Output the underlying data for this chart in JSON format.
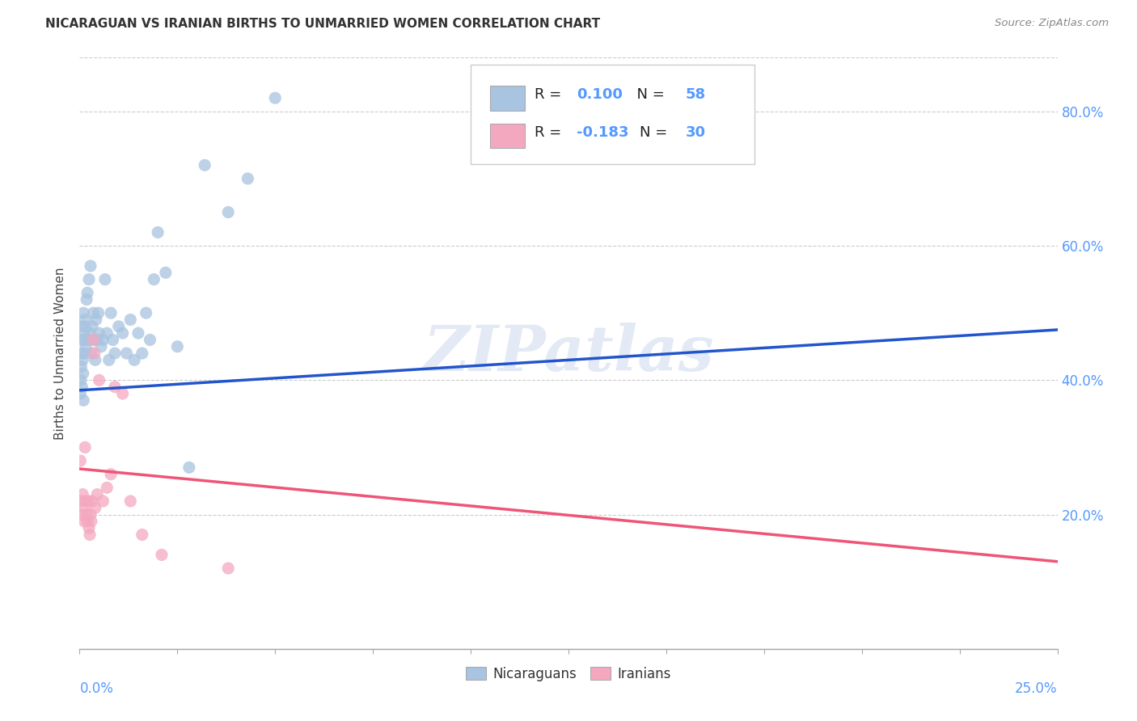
{
  "title": "NICARAGUAN VS IRANIAN BIRTHS TO UNMARRIED WOMEN CORRELATION CHART",
  "source": "Source: ZipAtlas.com",
  "ylabel": "Births to Unmarried Women",
  "legend_label_blue": "Nicaraguans",
  "legend_label_pink": "Iranians",
  "blue_color": "#a8c4e0",
  "pink_color": "#f4a8c0",
  "blue_line_color": "#2255cc",
  "pink_line_color": "#ee5577",
  "text_color": "#5599ff",
  "watermark": "ZIPatlas",
  "blue_scatter_x": [
    0.0002,
    0.0003,
    0.0004,
    0.0005,
    0.0006,
    0.0007,
    0.0008,
    0.0009,
    0.001,
    0.0011,
    0.0012,
    0.0013,
    0.0014,
    0.0015,
    0.0016,
    0.0018,
    0.002,
    0.0022,
    0.0024,
    0.0026,
    0.0028,
    0.003,
    0.0032,
    0.0035,
    0.0038,
    0.004,
    0.0042,
    0.0045,
    0.0048,
    0.005,
    0.0055,
    0.006,
    0.0065,
    0.007,
    0.0075,
    0.008,
    0.0085,
    0.009,
    0.01,
    0.011,
    0.012,
    0.013,
    0.014,
    0.015,
    0.016,
    0.017,
    0.018,
    0.019,
    0.02,
    0.022,
    0.025,
    0.028,
    0.032,
    0.038,
    0.043,
    0.05,
    0.001,
    0.0006
  ],
  "blue_scatter_y": [
    0.38,
    0.4,
    0.42,
    0.44,
    0.46,
    0.48,
    0.43,
    0.41,
    0.5,
    0.47,
    0.44,
    0.49,
    0.46,
    0.48,
    0.45,
    0.52,
    0.53,
    0.46,
    0.55,
    0.47,
    0.57,
    0.44,
    0.48,
    0.5,
    0.46,
    0.43,
    0.49,
    0.46,
    0.5,
    0.47,
    0.45,
    0.46,
    0.55,
    0.47,
    0.43,
    0.5,
    0.46,
    0.44,
    0.48,
    0.47,
    0.44,
    0.49,
    0.43,
    0.47,
    0.44,
    0.5,
    0.46,
    0.55,
    0.62,
    0.56,
    0.45,
    0.27,
    0.72,
    0.65,
    0.7,
    0.82,
    0.37,
    0.39
  ],
  "pink_scatter_x": [
    0.0002,
    0.0004,
    0.0006,
    0.0008,
    0.001,
    0.0012,
    0.0014,
    0.0016,
    0.0018,
    0.002,
    0.0022,
    0.0024,
    0.0026,
    0.0028,
    0.003,
    0.0032,
    0.0035,
    0.0038,
    0.004,
    0.0045,
    0.005,
    0.006,
    0.007,
    0.008,
    0.009,
    0.011,
    0.013,
    0.016,
    0.021,
    0.038
  ],
  "pink_scatter_y": [
    0.28,
    0.22,
    0.2,
    0.23,
    0.21,
    0.19,
    0.3,
    0.22,
    0.2,
    0.19,
    0.22,
    0.18,
    0.17,
    0.2,
    0.19,
    0.22,
    0.46,
    0.44,
    0.21,
    0.23,
    0.4,
    0.22,
    0.24,
    0.26,
    0.39,
    0.38,
    0.22,
    0.17,
    0.14,
    0.12
  ],
  "xlim": [
    0.0,
    0.25
  ],
  "ylim": [
    0.0,
    0.88
  ],
  "blue_line_x": [
    0.0,
    0.25
  ],
  "blue_line_y": [
    0.385,
    0.475
  ],
  "pink_line_x": [
    0.0,
    0.25
  ],
  "pink_line_y": [
    0.268,
    0.13
  ],
  "ytick_vals": [
    0.2,
    0.4,
    0.6,
    0.8
  ],
  "ytick_labels": [
    "20.0%",
    "40.0%",
    "60.0%",
    "80.0%"
  ],
  "xtick_vals": [
    0.0,
    0.025,
    0.05,
    0.075,
    0.1,
    0.125,
    0.15,
    0.175,
    0.2,
    0.225,
    0.25
  ],
  "grid_color": "#cccccc",
  "grid_style": "--"
}
